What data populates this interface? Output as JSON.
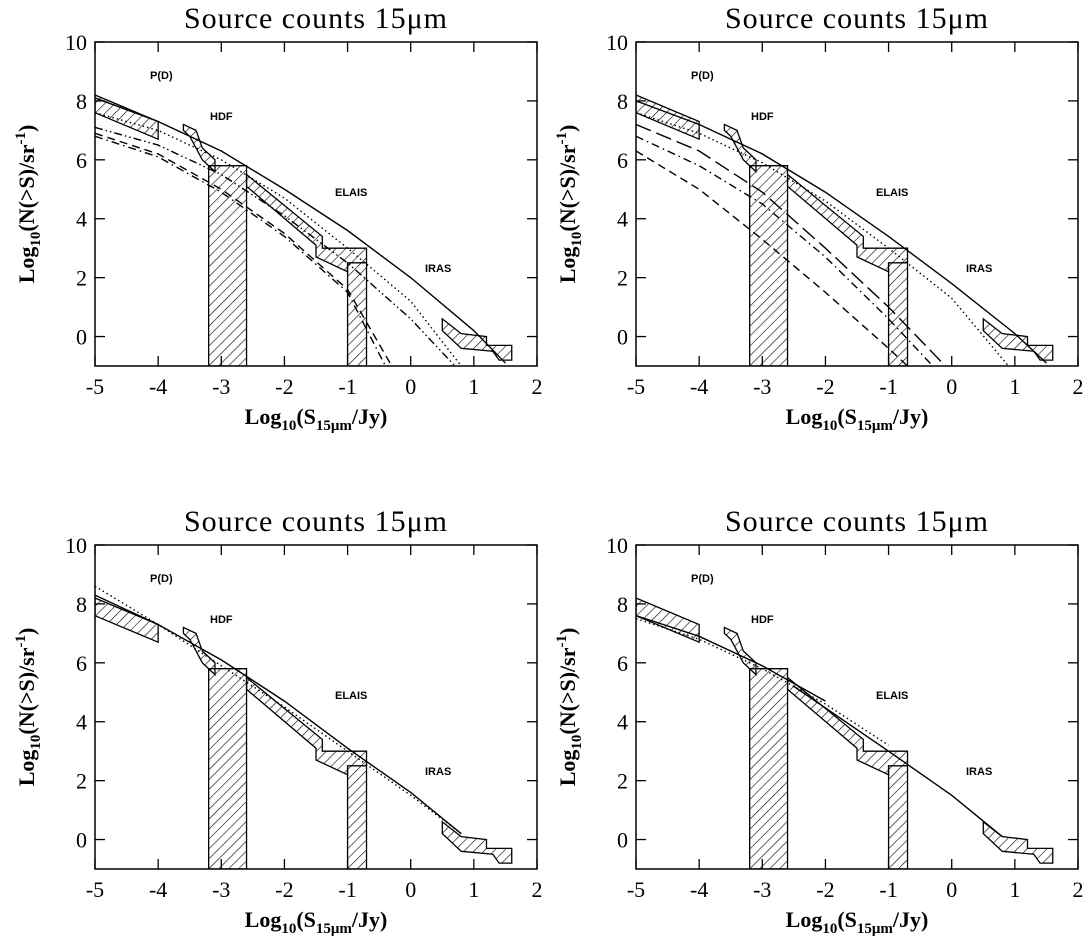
{
  "chart_data": [
    {
      "type": "line",
      "title": "Source counts 15μm",
      "xlabel": [
        "Log",
        "10",
        "(S",
        "15μm",
        "/Jy)"
      ],
      "ylabel": [
        "Log",
        "10",
        "(N(>S)/sr",
        "-1",
        ")"
      ],
      "xlim": [
        -5,
        2
      ],
      "ylim": [
        -1,
        10
      ],
      "xticks": [
        -5,
        -4,
        -3,
        -2,
        -1,
        0,
        1,
        2
      ],
      "yticks": [
        0,
        2,
        4,
        6,
        8,
        10
      ],
      "annotations": [
        "P(D)",
        "HDF",
        "ELAIS",
        "IRAS"
      ],
      "regions": [
        {
          "x": [
            -5,
            -4,
            -4,
            -5
          ],
          "y": [
            8.2,
            7.3,
            6.7,
            7.6
          ]
        },
        {
          "x": [
            -3.6,
            -3.4,
            -3.3,
            -3.1,
            -3.1,
            -3.3,
            -3.5,
            -3.6
          ],
          "y": [
            7.2,
            7.0,
            6.4,
            6.0,
            5.6,
            6.0,
            6.8,
            7.0
          ]
        },
        {
          "x": [
            -3.2,
            -2.6,
            -2.6,
            -3.2
          ],
          "y": [
            5.8,
            5.8,
            -1,
            -1
          ]
        },
        {
          "x": [
            -1,
            -0.7,
            -0.7,
            -1
          ],
          "y": [
            2.5,
            2.5,
            -1,
            -1
          ]
        },
        {
          "x": [
            -2.6,
            -1.4,
            -1.4,
            -0.7,
            -0.7,
            -1.0,
            -1.0,
            -1.5,
            -1.5,
            -2.6
          ],
          "y": [
            5.5,
            3.4,
            3.0,
            3.0,
            2.5,
            2.5,
            2.2,
            2.7,
            3.1,
            5.1
          ]
        },
        {
          "x": [
            0.5,
            0.8,
            1.2,
            1.2,
            1.6,
            1.6,
            1.4,
            1.3,
            0.8,
            0.5
          ],
          "y": [
            0.6,
            0.1,
            0.0,
            -0.3,
            -0.3,
            -0.8,
            -0.8,
            -0.5,
            -0.4,
            0.2
          ]
        }
      ],
      "series": [
        {
          "style": "solid",
          "color": "#000",
          "x": [
            -5,
            -4,
            -3,
            -2,
            -1,
            0,
            1,
            1.5
          ],
          "y": [
            8.1,
            7.3,
            6.3,
            5.0,
            3.6,
            2.0,
            0.2,
            -0.9
          ]
        },
        {
          "style": "dotted",
          "color": "#000",
          "x": [
            -5,
            -4,
            -3,
            -2,
            -1,
            0,
            0.8
          ],
          "y": [
            7.6,
            7.0,
            6.0,
            4.7,
            3.0,
            1.2,
            -1
          ]
        },
        {
          "style": "dashdotdot",
          "color": "#000",
          "x": [
            -5,
            -4,
            -3,
            -2,
            -1,
            0,
            0.7
          ],
          "y": [
            7.1,
            6.5,
            5.5,
            4.1,
            2.5,
            0.6,
            -1
          ]
        },
        {
          "style": "dashed",
          "color": "#000",
          "x": [
            -5,
            -4,
            -3,
            -2,
            -1,
            -0.3
          ],
          "y": [
            6.9,
            6.2,
            5.0,
            3.5,
            1.6,
            -1
          ]
        },
        {
          "style": "dashdot",
          "color": "#000",
          "x": [
            -5,
            -4,
            -3,
            -2,
            -1,
            -0.4
          ],
          "y": [
            6.8,
            6.1,
            4.9,
            3.4,
            1.5,
            -1
          ]
        }
      ]
    },
    {
      "type": "line",
      "title": "Source counts 15μm",
      "xlabel": [
        "Log",
        "10",
        "(S",
        "15μm",
        "/Jy)"
      ],
      "ylabel": [
        "Log",
        "10",
        "(N(>S)/sr",
        "-1",
        ")"
      ],
      "xlim": [
        -5,
        2
      ],
      "ylim": [
        -1,
        10
      ],
      "xticks": [
        -5,
        -4,
        -3,
        -2,
        -1,
        0,
        1,
        2
      ],
      "yticks": [
        0,
        2,
        4,
        6,
        8,
        10
      ],
      "annotations": [
        "P(D)",
        "HDF",
        "ELAIS",
        "IRAS"
      ],
      "regions": [
        {
          "x": [
            -5,
            -4,
            -4,
            -5
          ],
          "y": [
            8.2,
            7.3,
            6.7,
            7.6
          ]
        },
        {
          "x": [
            -3.6,
            -3.4,
            -3.3,
            -3.1,
            -3.1,
            -3.3,
            -3.5,
            -3.6
          ],
          "y": [
            7.2,
            7.0,
            6.4,
            6.0,
            5.6,
            6.0,
            6.8,
            7.0
          ]
        },
        {
          "x": [
            -3.2,
            -2.6,
            -2.6,
            -3.2
          ],
          "y": [
            5.8,
            5.8,
            -1,
            -1
          ]
        },
        {
          "x": [
            -1,
            -0.7,
            -0.7,
            -1
          ],
          "y": [
            2.5,
            2.5,
            -1,
            -1
          ]
        },
        {
          "x": [
            -2.6,
            -1.4,
            -1.4,
            -0.7,
            -0.7,
            -1.0,
            -1.0,
            -1.5,
            -1.5,
            -2.6
          ],
          "y": [
            5.5,
            3.4,
            3.0,
            3.0,
            2.5,
            2.5,
            2.2,
            2.7,
            3.1,
            5.1
          ]
        },
        {
          "x": [
            0.5,
            0.8,
            1.2,
            1.2,
            1.6,
            1.6,
            1.4,
            1.3,
            0.8,
            0.5
          ],
          "y": [
            0.6,
            0.1,
            0.0,
            -0.3,
            -0.3,
            -0.8,
            -0.8,
            -0.5,
            -0.4,
            0.2
          ]
        }
      ],
      "series": [
        {
          "style": "solid",
          "color": "#000",
          "x": [
            -5,
            -4,
            -3,
            -2,
            -1,
            0,
            1,
            1.5
          ],
          "y": [
            8.0,
            7.2,
            6.2,
            4.9,
            3.4,
            1.8,
            0.1,
            -0.9
          ]
        },
        {
          "style": "dotted",
          "color": "#000",
          "x": [
            -5,
            -4,
            -3,
            -2,
            -1,
            0,
            0.9
          ],
          "y": [
            7.6,
            6.9,
            5.9,
            4.6,
            3.0,
            1.3,
            -1
          ]
        },
        {
          "style": "dashed",
          "color": "#000",
          "x": [
            -5,
            -4,
            -3,
            -2,
            -1,
            -0.7
          ],
          "y": [
            6.3,
            5.0,
            3.3,
            1.5,
            -0.4,
            -1
          ]
        },
        {
          "style": "longdash",
          "color": "#000",
          "x": [
            -5,
            -4,
            -3,
            -2,
            -1,
            -0.1
          ],
          "y": [
            7.2,
            6.3,
            4.9,
            3.0,
            1.0,
            -1
          ]
        },
        {
          "style": "dashdot",
          "color": "#000",
          "x": [
            -5,
            -4,
            -3,
            -2,
            -1,
            -0.3
          ],
          "y": [
            6.8,
            5.8,
            4.5,
            2.7,
            0.6,
            -1
          ]
        }
      ]
    },
    {
      "type": "line",
      "title": "Source counts 15μm",
      "xlabel": [
        "Log",
        "10",
        "(S",
        "15μm",
        "/Jy)"
      ],
      "ylabel": [
        "Log",
        "10",
        "(N(>S)/sr",
        "-1",
        ")"
      ],
      "xlim": [
        -5,
        2
      ],
      "ylim": [
        -1,
        10
      ],
      "xticks": [
        -5,
        -4,
        -3,
        -2,
        -1,
        0,
        1,
        2
      ],
      "yticks": [
        0,
        2,
        4,
        6,
        8,
        10
      ],
      "annotations": [
        "P(D)",
        "HDF",
        "ELAIS",
        "IRAS"
      ],
      "regions": [
        {
          "x": [
            -5,
            -4,
            -4,
            -5
          ],
          "y": [
            8.2,
            7.3,
            6.7,
            7.6
          ]
        },
        {
          "x": [
            -3.6,
            -3.4,
            -3.3,
            -3.1,
            -3.1,
            -3.3,
            -3.5,
            -3.6
          ],
          "y": [
            7.2,
            7.0,
            6.4,
            6.0,
            5.6,
            6.0,
            6.8,
            7.0
          ]
        },
        {
          "x": [
            -3.2,
            -2.6,
            -2.6,
            -3.2
          ],
          "y": [
            5.8,
            5.8,
            -1,
            -1
          ]
        },
        {
          "x": [
            -1,
            -0.7,
            -0.7,
            -1
          ],
          "y": [
            2.5,
            2.5,
            -1,
            -1
          ]
        },
        {
          "x": [
            -2.6,
            -1.4,
            -1.4,
            -0.7,
            -0.7,
            -1.0,
            -1.0,
            -1.5,
            -1.5,
            -2.6
          ],
          "y": [
            5.5,
            3.4,
            3.0,
            3.0,
            2.5,
            2.5,
            2.2,
            2.7,
            3.1,
            5.1
          ]
        },
        {
          "x": [
            0.5,
            0.8,
            1.2,
            1.2,
            1.6,
            1.6,
            1.4,
            1.3,
            0.8,
            0.5
          ],
          "y": [
            0.6,
            0.1,
            0.0,
            -0.3,
            -0.3,
            -0.8,
            -0.8,
            -0.5,
            -0.4,
            0.2
          ]
        }
      ],
      "series": [
        {
          "style": "solid",
          "color": "#000",
          "x": [
            -5,
            -4,
            -3,
            -2,
            -1,
            0,
            0.8
          ],
          "y": [
            8.3,
            7.3,
            6.1,
            4.7,
            3.1,
            1.6,
            0.2
          ]
        },
        {
          "style": "dotted",
          "color": "#000",
          "x": [
            -5,
            -4,
            -3,
            -2,
            -1,
            0,
            0.8
          ],
          "y": [
            8.6,
            7.3,
            5.9,
            4.5,
            3.0,
            1.5,
            0.2
          ]
        }
      ]
    },
    {
      "type": "line",
      "title": "Source counts 15μm",
      "xlabel": [
        "Log",
        "10",
        "(S",
        "15μm",
        "/Jy)"
      ],
      "ylabel": [
        "Log",
        "10",
        "(N(>S)/sr",
        "-1",
        ")"
      ],
      "xlim": [
        -5,
        2
      ],
      "ylim": [
        -1,
        10
      ],
      "xticks": [
        -5,
        -4,
        -3,
        -2,
        -1,
        0,
        1,
        2
      ],
      "yticks": [
        0,
        2,
        4,
        6,
        8,
        10
      ],
      "annotations": [
        "P(D)",
        "HDF",
        "ELAIS",
        "IRAS"
      ],
      "regions": [
        {
          "x": [
            -5,
            -4,
            -4,
            -5
          ],
          "y": [
            8.2,
            7.3,
            6.7,
            7.6
          ]
        },
        {
          "x": [
            -3.6,
            -3.4,
            -3.3,
            -3.1,
            -3.1,
            -3.3,
            -3.5,
            -3.6
          ],
          "y": [
            7.2,
            7.0,
            6.4,
            6.0,
            5.6,
            6.0,
            6.8,
            7.0
          ]
        },
        {
          "x": [
            -3.2,
            -2.6,
            -2.6,
            -3.2
          ],
          "y": [
            5.8,
            5.8,
            -1,
            -1
          ]
        },
        {
          "x": [
            -1,
            -0.7,
            -0.7,
            -1
          ],
          "y": [
            2.5,
            2.5,
            -1,
            -1
          ]
        },
        {
          "x": [
            -2.6,
            -1.4,
            -1.4,
            -0.7,
            -0.7,
            -1.0,
            -1.0,
            -1.5,
            -1.5,
            -2.6
          ],
          "y": [
            5.5,
            3.4,
            3.0,
            3.0,
            2.5,
            2.5,
            2.2,
            2.7,
            3.1,
            5.1
          ]
        },
        {
          "x": [
            0.5,
            0.8,
            1.2,
            1.2,
            1.6,
            1.6,
            1.4,
            1.3,
            0.8,
            0.5
          ],
          "y": [
            0.6,
            0.1,
            0.0,
            -0.3,
            -0.3,
            -0.8,
            -0.8,
            -0.5,
            -0.4,
            0.2
          ]
        }
      ],
      "series": [
        {
          "style": "solid",
          "color": "#000",
          "x": [
            -5,
            -4,
            -3,
            -2
          ],
          "y": [
            7.6,
            6.9,
            5.9,
            4.7
          ]
        },
        {
          "style": "solid",
          "color": "#000",
          "x": [
            -2.5,
            -1,
            0,
            0.8
          ],
          "y": [
            5.2,
            3.0,
            1.5,
            0.1
          ]
        },
        {
          "style": "dotted",
          "color": "#000",
          "x": [
            -5,
            -4,
            -3,
            -2,
            -1
          ],
          "y": [
            7.5,
            6.8,
            5.8,
            4.6,
            3.2
          ]
        }
      ]
    }
  ]
}
